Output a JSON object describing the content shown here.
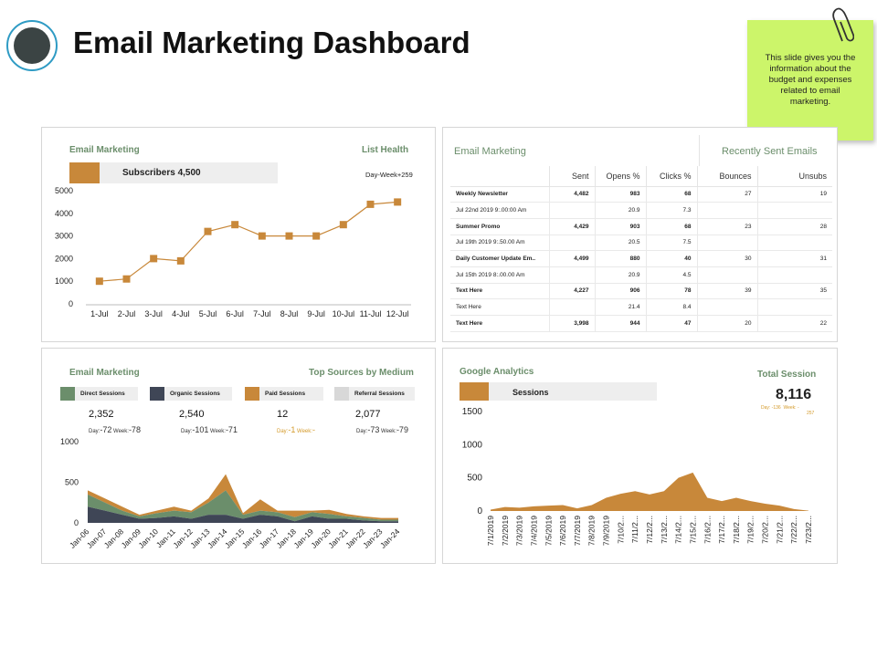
{
  "header": {
    "title": "Email Marketing Dashboard",
    "note": "This slide gives you the information about the budget and expenses related to email marketing."
  },
  "colors": {
    "accent": "#c8883a",
    "green": "#6b8e6b",
    "dark": "#3f4656",
    "sticky": "#ccf56a",
    "gray": "#d8d8d8"
  },
  "list_health": {
    "title": "Email Marketing",
    "subtitle": "List Health",
    "subscribers": "Subscribers 4,500",
    "note": "Day-Week+259"
  },
  "sent_emails": {
    "title": "Email Marketing",
    "subtitle": "Recently Sent Emails",
    "columns": [
      "",
      "Sent",
      "Opens %",
      "Clicks %",
      "Bounces",
      "Unsubs"
    ],
    "rows": [
      {
        "name": "Weekly Newsletter",
        "sent": "4,482",
        "opens": "983",
        "clicks": "68",
        "bounces": "27",
        "unsubs": "19",
        "bold": true
      },
      {
        "name": "Jul 22nd 2019 9:.00:00 Am",
        "sent": "",
        "opens": "20.9",
        "clicks": "7.3",
        "bounces": "",
        "unsubs": "",
        "bold": false
      },
      {
        "name": "Summer Promo",
        "sent": "4,429",
        "opens": "903",
        "clicks": "68",
        "bounces": "23",
        "unsubs": "28",
        "bold": true
      },
      {
        "name": "Jul 19th 2019 9:.50.00 Am",
        "sent": "",
        "opens": "20.5",
        "clicks": "7.5",
        "bounces": "",
        "unsubs": "",
        "bold": false
      },
      {
        "name": "Daily Customer Update Em..",
        "sent": "4,499",
        "opens": "880",
        "clicks": "40",
        "bounces": "30",
        "unsubs": "31",
        "bold": true
      },
      {
        "name": "Jul 15th 2019 8:.00.00 Am",
        "sent": "",
        "opens": "20.9",
        "clicks": "4.5",
        "bounces": "",
        "unsubs": "",
        "bold": false
      },
      {
        "name": "Text Here",
        "sent": "4,227",
        "opens": "906",
        "clicks": "78",
        "bounces": "39",
        "unsubs": "35",
        "bold": true
      },
      {
        "name": "Text Here",
        "sent": "",
        "opens": "21.4",
        "clicks": "8.4",
        "bounces": "",
        "unsubs": "",
        "bold": false
      },
      {
        "name": "Text Here",
        "sent": "3,998",
        "opens": "944",
        "clicks": "47",
        "bounces": "20",
        "unsubs": "22",
        "bold": true
      }
    ]
  },
  "sources": {
    "title": "Email Marketing",
    "subtitle": "Top  Sources by Medium",
    "legend": [
      {
        "label": "Direct Sessions",
        "color": "#6b8e6b",
        "value": "2,352",
        "day": "-72",
        "week": "-78"
      },
      {
        "label": "Organic Sessions",
        "color": "#3f4656",
        "value": "2,540",
        "day": "-101",
        "week": "-71"
      },
      {
        "label": "Paid Sessions",
        "color": "#c8883a",
        "value": "12",
        "day": "-1",
        "week": "-"
      },
      {
        "label": "Referral Sessions",
        "color": "#d8d8d8",
        "value": "2,077",
        "day": "-73",
        "week": "-79"
      }
    ],
    "day_label": "Day:",
    "week_label": "Week:"
  },
  "analytics": {
    "title": "Google Analytics",
    "sessions_label": "Sessions",
    "total_label": "Total  Session",
    "total": "8,116",
    "day_label": "Day:",
    "day_value": "-136",
    "week_label": "Week: -",
    "week_value": "257"
  },
  "chart_data": [
    {
      "type": "line",
      "categories": [
        "1-Jul",
        "2-Jul",
        "3-Jul",
        "4-Jul",
        "5-Jul",
        "6-Jul",
        "7-Jul",
        "8-Jul",
        "9-Jul",
        "10-Jul",
        "11-Jul",
        "12-Jul"
      ],
      "values": [
        1000,
        1100,
        2000,
        1900,
        3200,
        3500,
        3000,
        3000,
        3000,
        3500,
        4400,
        4500
      ],
      "ylim": [
        0,
        5000
      ],
      "yticks": [
        0,
        1000,
        2000,
        3000,
        4000,
        5000
      ],
      "grid": false
    },
    {
      "type": "area",
      "categories": [
        "Jan-06",
        "Jan-07",
        "Jan-08",
        "Jan-09",
        "Jan-10",
        "Jan-11",
        "Jan-12",
        "Jan-13",
        "Jan-14",
        "Jan-15",
        "Jan-16",
        "Jan-17",
        "Jan-18",
        "Jan-19",
        "Jan-20",
        "Jan-21",
        "Jan-22",
        "Jan-23",
        "Jan-24"
      ],
      "series": [
        {
          "name": "Organic Sessions",
          "values": [
            200,
            150,
            100,
            50,
            60,
            80,
            50,
            100,
            100,
            50,
            100,
            80,
            20,
            80,
            50,
            50,
            30,
            20,
            20
          ]
        },
        {
          "name": "Direct Sessions",
          "values": [
            150,
            100,
            50,
            30,
            60,
            70,
            80,
            150,
            300,
            50,
            50,
            50,
            50,
            50,
            60,
            30,
            30,
            20,
            20
          ]
        },
        {
          "name": "Paid Sessions",
          "values": [
            50,
            50,
            50,
            20,
            30,
            50,
            20,
            50,
            200,
            20,
            140,
            20,
            80,
            20,
            50,
            30,
            20,
            20,
            20
          ]
        }
      ],
      "ylim": [
        0,
        1000
      ],
      "yticks": [
        0,
        500,
        1000
      ],
      "grid": false
    },
    {
      "type": "area",
      "categories": [
        "7/1/2019",
        "7/2/2019",
        "7/3/2019",
        "7/4/2019",
        "7/5/2019",
        "7/6/2019",
        "7/7/2019",
        "7/8/2019",
        "7/9/2019",
        "7/10/2...",
        "7/11/2...",
        "7/12/2...",
        "7/13/2...",
        "7/14/2...",
        "7/15/2...",
        "7/16/2...",
        "7/17/2...",
        "7/18/2...",
        "7/19/2...",
        "7/20/2...",
        "7/21/2...",
        "7/22/2...",
        "7/23/2..."
      ],
      "values": [
        20,
        60,
        50,
        70,
        80,
        90,
        40,
        90,
        200,
        260,
        300,
        250,
        300,
        500,
        580,
        200,
        150,
        200,
        150,
        110,
        80,
        30,
        5
      ],
      "ylim": [
        0,
        1500
      ],
      "yticks": [
        0,
        500,
        1000,
        1500
      ],
      "grid": false
    }
  ]
}
